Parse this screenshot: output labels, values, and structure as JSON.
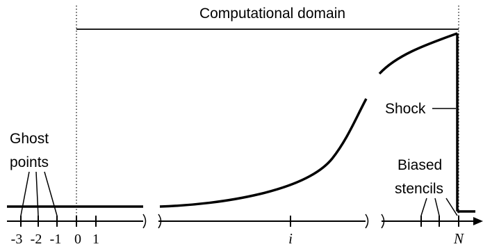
{
  "title": "Computational domain",
  "labels": {
    "ghost_line1": "Ghost",
    "ghost_line2": "points",
    "biased_line1": "Biased",
    "biased_line2": "stencils",
    "shock": "Shock"
  },
  "ticks": [
    "-3",
    "-2",
    "-1",
    "0",
    "1",
    "i",
    "N"
  ]
}
